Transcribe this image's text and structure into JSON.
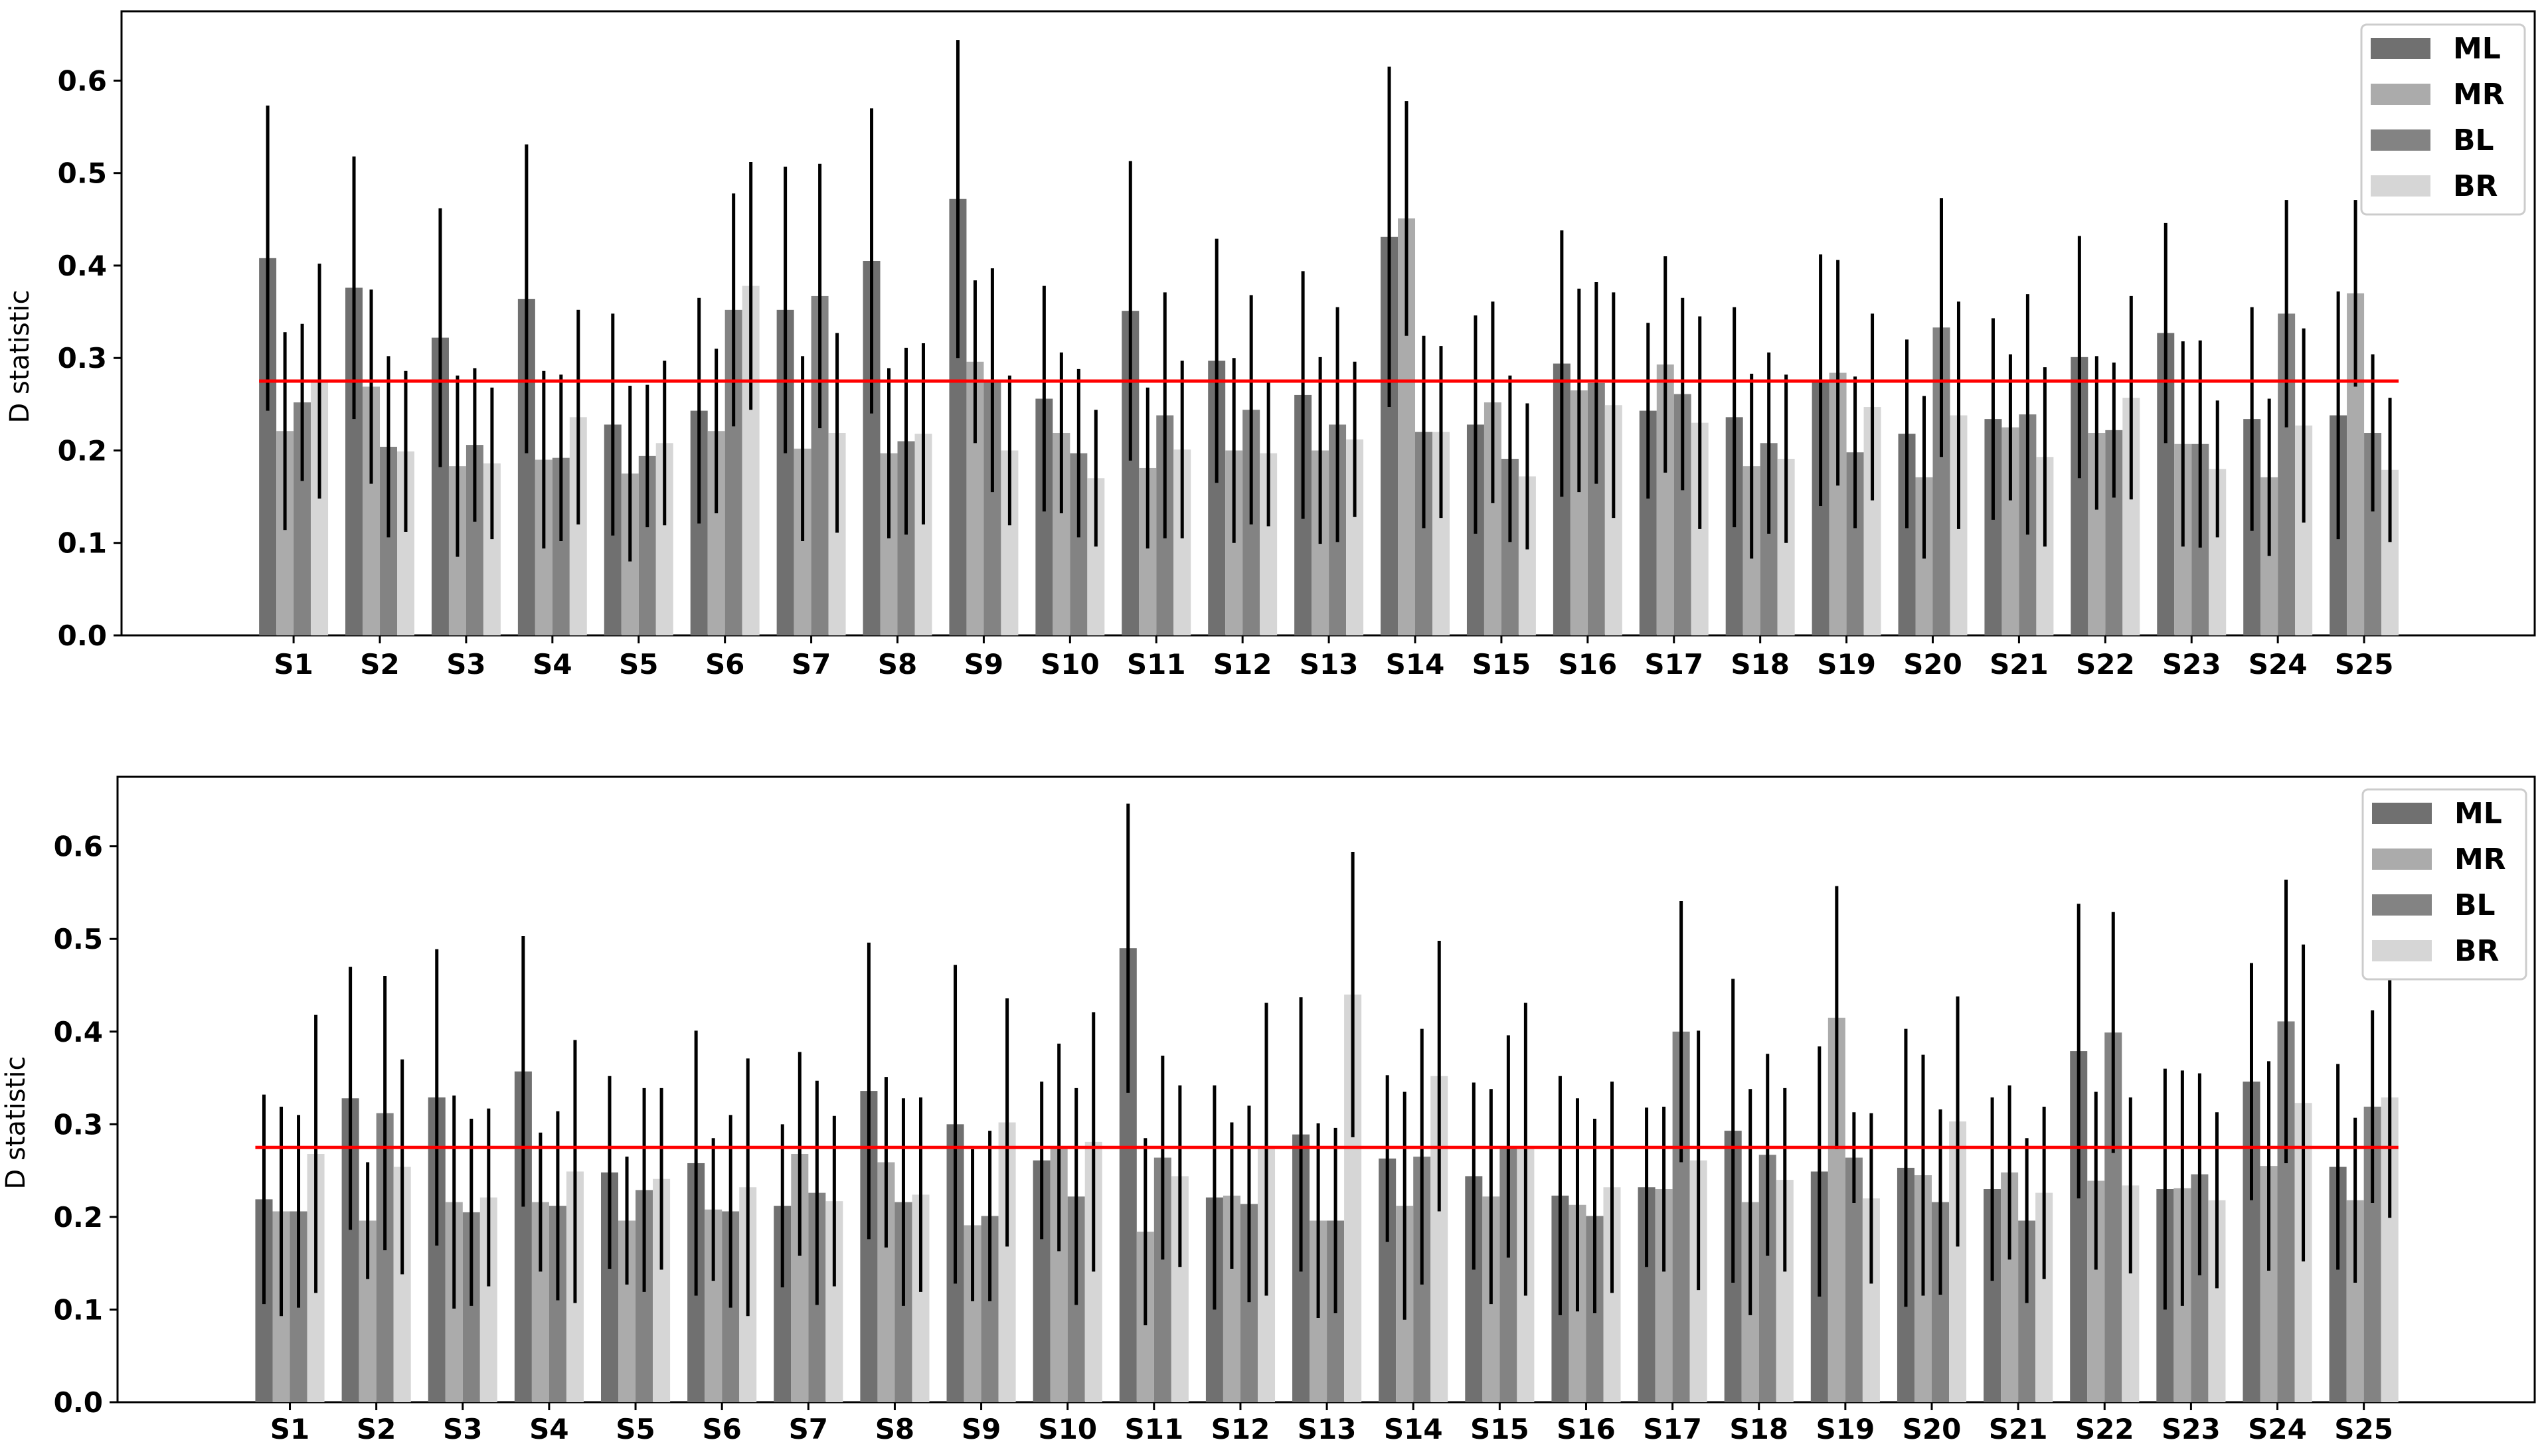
{
  "chart_data": [
    {
      "type": "bar",
      "ylabel": "D statistic",
      "ylim": [
        0,
        0.675
      ],
      "yticks": [
        0.0,
        0.1,
        0.2,
        0.3,
        0.4,
        0.5,
        0.6
      ],
      "reference_line": {
        "y": 0.275,
        "color": "#ff0000"
      },
      "legend_position": "top-right",
      "categories": [
        "S1",
        "S2",
        "S3",
        "S4",
        "S5",
        "S6",
        "S7",
        "S8",
        "S9",
        "S10",
        "S11",
        "S12",
        "S13",
        "S14",
        "S15",
        "S16",
        "S17",
        "S18",
        "S19",
        "S20",
        "S21",
        "S22",
        "S23",
        "S24",
        "S25"
      ],
      "series": [
        {
          "name": "ML",
          "color": "#707070",
          "values": [
            0.408,
            0.376,
            0.322,
            0.364,
            0.228,
            0.243,
            0.352,
            0.405,
            0.472,
            0.256,
            0.351,
            0.297,
            0.26,
            0.431,
            0.228,
            0.294,
            0.243,
            0.236,
            0.276,
            0.218,
            0.234,
            0.301,
            0.327,
            0.234,
            0.238
          ],
          "errors": [
            0.165,
            0.142,
            0.14,
            0.167,
            0.12,
            0.122,
            0.155,
            0.165,
            0.172,
            0.122,
            0.162,
            0.132,
            0.134,
            0.184,
            0.118,
            0.144,
            0.095,
            0.119,
            0.136,
            0.102,
            0.109,
            0.131,
            0.119,
            0.121,
            0.134
          ]
        },
        {
          "name": "MR",
          "color": "#ababab",
          "values": [
            0.221,
            0.269,
            0.183,
            0.19,
            0.175,
            0.221,
            0.202,
            0.197,
            0.296,
            0.219,
            0.181,
            0.2,
            0.2,
            0.451,
            0.252,
            0.265,
            0.293,
            0.183,
            0.284,
            0.171,
            0.225,
            0.219,
            0.207,
            0.171,
            0.37
          ],
          "errors": [
            0.107,
            0.105,
            0.098,
            0.096,
            0.095,
            0.089,
            0.1,
            0.092,
            0.088,
            0.087,
            0.087,
            0.1,
            0.101,
            0.127,
            0.109,
            0.11,
            0.117,
            0.1,
            0.122,
            0.088,
            0.079,
            0.083,
            0.111,
            0.085,
            0.101
          ]
        },
        {
          "name": "BL",
          "color": "#838383",
          "values": [
            0.252,
            0.204,
            0.206,
            0.192,
            0.194,
            0.352,
            0.367,
            0.21,
            0.276,
            0.197,
            0.238,
            0.244,
            0.228,
            0.22,
            0.191,
            0.273,
            0.261,
            0.208,
            0.198,
            0.333,
            0.239,
            0.222,
            0.207,
            0.348,
            0.219
          ],
          "errors": [
            0.085,
            0.098,
            0.083,
            0.09,
            0.077,
            0.126,
            0.143,
            0.101,
            0.121,
            0.091,
            0.133,
            0.124,
            0.127,
            0.104,
            0.09,
            0.109,
            0.104,
            0.098,
            0.082,
            0.14,
            0.13,
            0.073,
            0.112,
            0.123,
            0.085
          ]
        },
        {
          "name": "BR",
          "color": "#d6d6d6",
          "values": [
            0.275,
            0.199,
            0.186,
            0.236,
            0.208,
            0.378,
            0.219,
            0.218,
            0.2,
            0.17,
            0.201,
            0.197,
            0.212,
            0.22,
            0.172,
            0.249,
            0.23,
            0.191,
            0.247,
            0.238,
            0.193,
            0.257,
            0.18,
            0.227,
            0.179
          ],
          "errors": [
            0.127,
            0.087,
            0.082,
            0.116,
            0.089,
            0.134,
            0.108,
            0.098,
            0.081,
            0.074,
            0.096,
            0.079,
            0.084,
            0.093,
            0.079,
            0.122,
            0.115,
            0.091,
            0.101,
            0.123,
            0.097,
            0.11,
            0.074,
            0.105,
            0.078
          ]
        }
      ]
    },
    {
      "type": "bar",
      "ylabel": "D statistic",
      "ylim": [
        0,
        0.675
      ],
      "yticks": [
        0.0,
        0.1,
        0.2,
        0.3,
        0.4,
        0.5,
        0.6
      ],
      "reference_line": {
        "y": 0.275,
        "color": "#ff0000"
      },
      "legend_position": "top-right",
      "categories": [
        "S1",
        "S2",
        "S3",
        "S4",
        "S5",
        "S6",
        "S7",
        "S8",
        "S9",
        "S10",
        "S11",
        "S12",
        "S13",
        "S14",
        "S15",
        "S16",
        "S17",
        "S18",
        "S19",
        "S20",
        "S21",
        "S22",
        "S23",
        "S24",
        "S25"
      ],
      "series": [
        {
          "name": "ML",
          "color": "#707070",
          "values": [
            0.219,
            0.328,
            0.329,
            0.357,
            0.248,
            0.258,
            0.212,
            0.336,
            0.3,
            0.261,
            0.49,
            0.221,
            0.289,
            0.263,
            0.244,
            0.223,
            0.232,
            0.293,
            0.249,
            0.253,
            0.23,
            0.379,
            0.23,
            0.346,
            0.254
          ],
          "errors": [
            0.113,
            0.142,
            0.16,
            0.146,
            0.104,
            0.143,
            0.088,
            0.16,
            0.172,
            0.085,
            0.156,
            0.121,
            0.148,
            0.09,
            0.101,
            0.129,
            0.086,
            0.164,
            0.135,
            0.15,
            0.099,
            0.159,
            0.13,
            0.128,
            0.111
          ]
        },
        {
          "name": "MR",
          "color": "#ababab",
          "values": [
            0.206,
            0.196,
            0.216,
            0.216,
            0.196,
            0.208,
            0.268,
            0.259,
            0.191,
            0.275,
            0.184,
            0.223,
            0.196,
            0.212,
            0.222,
            0.213,
            0.23,
            0.216,
            0.415,
            0.245,
            0.248,
            0.239,
            0.231,
            0.255,
            0.218
          ],
          "errors": [
            0.113,
            0.063,
            0.115,
            0.075,
            0.069,
            0.077,
            0.11,
            0.092,
            0.082,
            0.112,
            0.101,
            0.079,
            0.105,
            0.123,
            0.116,
            0.115,
            0.089,
            0.122,
            0.142,
            0.13,
            0.094,
            0.096,
            0.127,
            0.113,
            0.089
          ]
        },
        {
          "name": "BL",
          "color": "#838383",
          "values": [
            0.206,
            0.312,
            0.205,
            0.212,
            0.229,
            0.206,
            0.226,
            0.216,
            0.201,
            0.222,
            0.264,
            0.214,
            0.196,
            0.265,
            0.276,
            0.201,
            0.4,
            0.267,
            0.264,
            0.216,
            0.196,
            0.399,
            0.246,
            0.411,
            0.319
          ],
          "errors": [
            0.104,
            0.148,
            0.101,
            0.102,
            0.11,
            0.104,
            0.121,
            0.112,
            0.092,
            0.117,
            0.11,
            0.106,
            0.1,
            0.138,
            0.12,
            0.105,
            0.141,
            0.109,
            0.049,
            0.1,
            0.089,
            0.13,
            0.109,
            0.153,
            0.104
          ]
        },
        {
          "name": "BR",
          "color": "#d6d6d6",
          "values": [
            0.268,
            0.254,
            0.221,
            0.249,
            0.241,
            0.232,
            0.217,
            0.224,
            0.302,
            0.281,
            0.244,
            0.273,
            0.44,
            0.352,
            0.273,
            0.232,
            0.261,
            0.24,
            0.22,
            0.303,
            0.226,
            0.234,
            0.218,
            0.323,
            0.329
          ],
          "errors": [
            0.15,
            0.116,
            0.096,
            0.142,
            0.098,
            0.139,
            0.092,
            0.105,
            0.134,
            0.14,
            0.098,
            0.158,
            0.154,
            0.146,
            0.158,
            0.114,
            0.14,
            0.099,
            0.092,
            0.135,
            0.093,
            0.095,
            0.095,
            0.171,
            0.13
          ]
        }
      ]
    }
  ]
}
